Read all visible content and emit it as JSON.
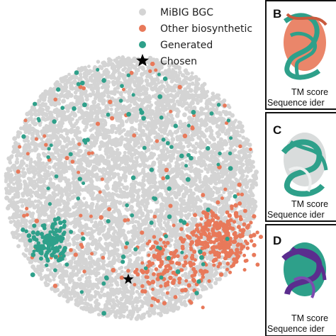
{
  "chart_data": [
    {
      "type": "scatter",
      "title": "",
      "xlabel": "",
      "ylabel": "",
      "grid": false,
      "legend_position": "top-right",
      "series": [
        {
          "name": "MiBIG BGC",
          "color": "#d4d4d4",
          "marker": "circle",
          "count": 6000
        },
        {
          "name": "Other biosynthetic",
          "color": "#e8795a",
          "marker": "circle",
          "count": 520
        },
        {
          "name": "Generated",
          "color": "#2ea08a",
          "marker": "circle",
          "count": 260
        },
        {
          "name": "Chosen",
          "color": "#000000",
          "marker": "star",
          "points": [
            {
              "x": 181,
              "y": 394
            }
          ]
        }
      ]
    }
  ],
  "panels": [
    {
      "letter": "B",
      "caption_line1": "TM score",
      "caption_line2": "Sequence ider",
      "structure_colors": [
        "#e8795a",
        "#2ea08a"
      ]
    },
    {
      "letter": "C",
      "caption_line1": "TM score",
      "caption_line2": "Sequence ider",
      "structure_colors": [
        "#d4d4d4",
        "#2ea08a"
      ]
    },
    {
      "letter": "D",
      "caption_line1": "TM score",
      "caption_line2": "Sequence ider",
      "structure_colors": [
        "#5b2d8e",
        "#2ea08a"
      ]
    }
  ]
}
